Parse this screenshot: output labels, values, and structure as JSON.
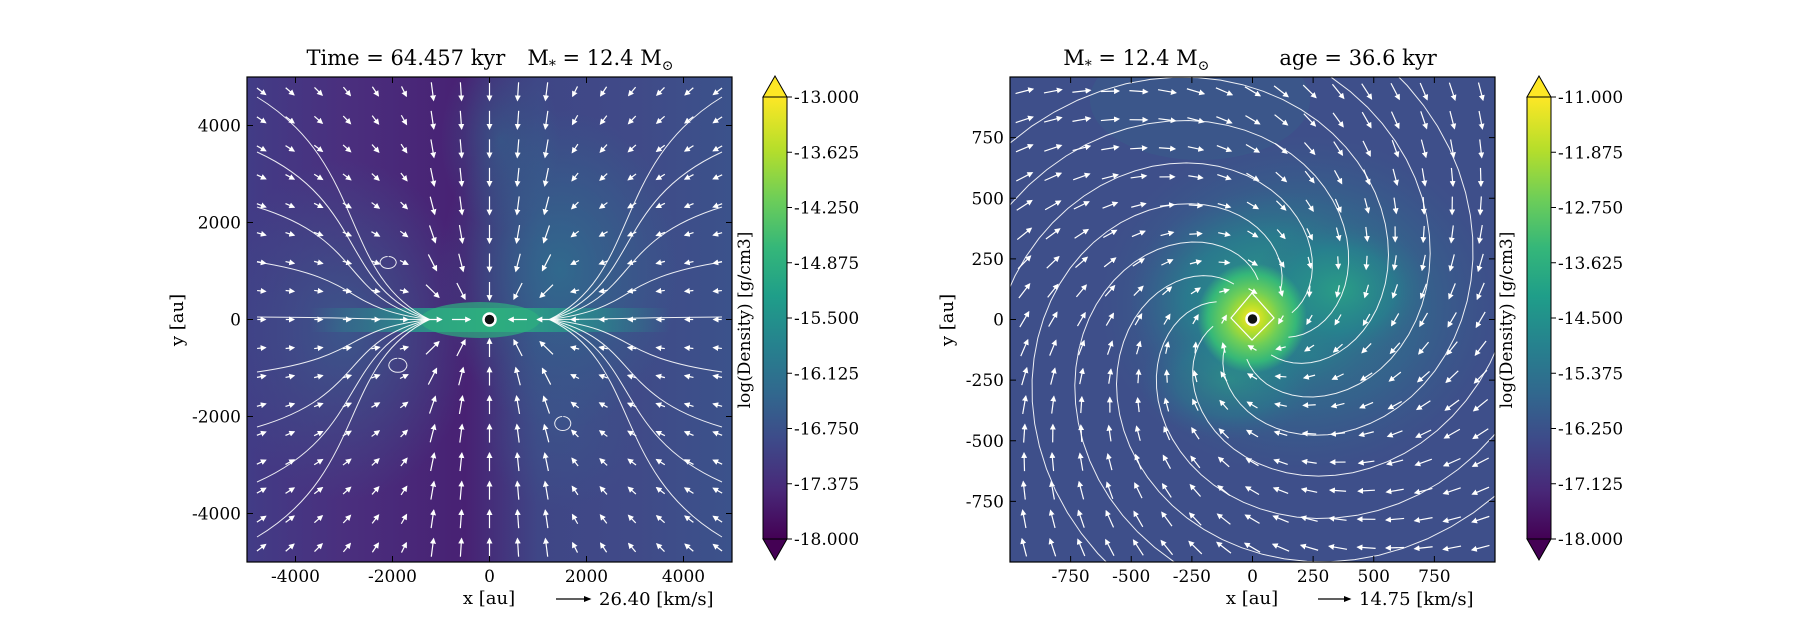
{
  "chart_data": [
    {
      "type": "heatmap",
      "panel": "left",
      "title": "Time = 64.457 kyr    M$_*$ = 12.4 M$_\\odot$",
      "title_parts": {
        "time": "Time = 64.457 kyr",
        "mass": "M",
        "mass_sub": "*",
        "mass_val": " = 12.4 M",
        "mass_sun": "⊙"
      },
      "xlabel": "x [au]",
      "ylabel": "y [au]",
      "xlim": [
        -5000,
        5000
      ],
      "ylim": [
        -5000,
        5000
      ],
      "xticks": [
        "-4000",
        "-2000",
        "0",
        "2000",
        "4000"
      ],
      "xtick_values": [
        -4000,
        -2000,
        0,
        2000,
        4000
      ],
      "yticks": [
        "4000",
        "2000",
        "0",
        "-2000",
        "-4000"
      ],
      "ytick_values": [
        4000,
        2000,
        0,
        -2000,
        -4000
      ],
      "vector_key": "26.40 [km/s]",
      "colorbar": {
        "label": "log(Density) [g/cm3]",
        "range": [
          -18.0,
          -13.0
        ],
        "ticks": [
          "-13.000",
          "-13.625",
          "-14.250",
          "-14.875",
          "-15.500",
          "-16.125",
          "-16.750",
          "-17.375",
          "-18.000"
        ],
        "tick_values": [
          -13.0,
          -13.625,
          -14.25,
          -14.875,
          -15.5,
          -16.125,
          -16.75,
          -17.375,
          -18.0
        ],
        "colormap": "viridis",
        "extend": "both"
      },
      "overlays": [
        "velocity-vectors",
        "streamlines",
        "sink-particle"
      ],
      "sink_position": [
        0,
        0
      ]
    },
    {
      "type": "heatmap",
      "panel": "right",
      "title": "M$_*$ = 12.4 M$_\\odot$        age = 36.6 kyr",
      "title_parts": {
        "mass": "M",
        "mass_sub": "*",
        "mass_val": " = 12.4 M",
        "mass_sun": "⊙",
        "age": "age = 36.6 kyr"
      },
      "xlabel": "x [au]",
      "ylabel": "y [au]",
      "xlim": [
        -1000,
        1000
      ],
      "ylim": [
        -1000,
        1000
      ],
      "xticks": [
        "-750",
        "-500",
        "-250",
        "0",
        "250",
        "500",
        "750"
      ],
      "xtick_values": [
        -750,
        -500,
        -250,
        0,
        250,
        500,
        750
      ],
      "yticks": [
        "750",
        "500",
        "250",
        "0",
        "-250",
        "-500",
        "-750"
      ],
      "ytick_values": [
        750,
        500,
        250,
        0,
        -250,
        -500,
        -750
      ],
      "vector_key": "14.75 [km/s]",
      "colorbar": {
        "label": "log(Density) [g/cm3]",
        "range": [
          -18.0,
          -11.0
        ],
        "ticks": [
          "-11.000",
          "-11.875",
          "-12.750",
          "-13.625",
          "-14.500",
          "-15.375",
          "-16.250",
          "-17.125",
          "-18.000"
        ],
        "tick_values": [
          -11.0,
          -11.875,
          -12.75,
          -13.625,
          -14.5,
          -15.375,
          -16.25,
          -17.125,
          -18.0
        ],
        "colormap": "viridis",
        "extend": "both"
      },
      "overlays": [
        "velocity-vectors",
        "streamlines",
        "sink-particle"
      ],
      "sink_position": [
        0,
        0
      ]
    }
  ],
  "colors": {
    "viridis": [
      "#440154",
      "#482878",
      "#3e4989",
      "#31688e",
      "#26828e",
      "#1f9e89",
      "#35b779",
      "#6ece58",
      "#b5de2b",
      "#fde725"
    ],
    "overlay": "#ffffff",
    "sink_fill": "#111111"
  }
}
